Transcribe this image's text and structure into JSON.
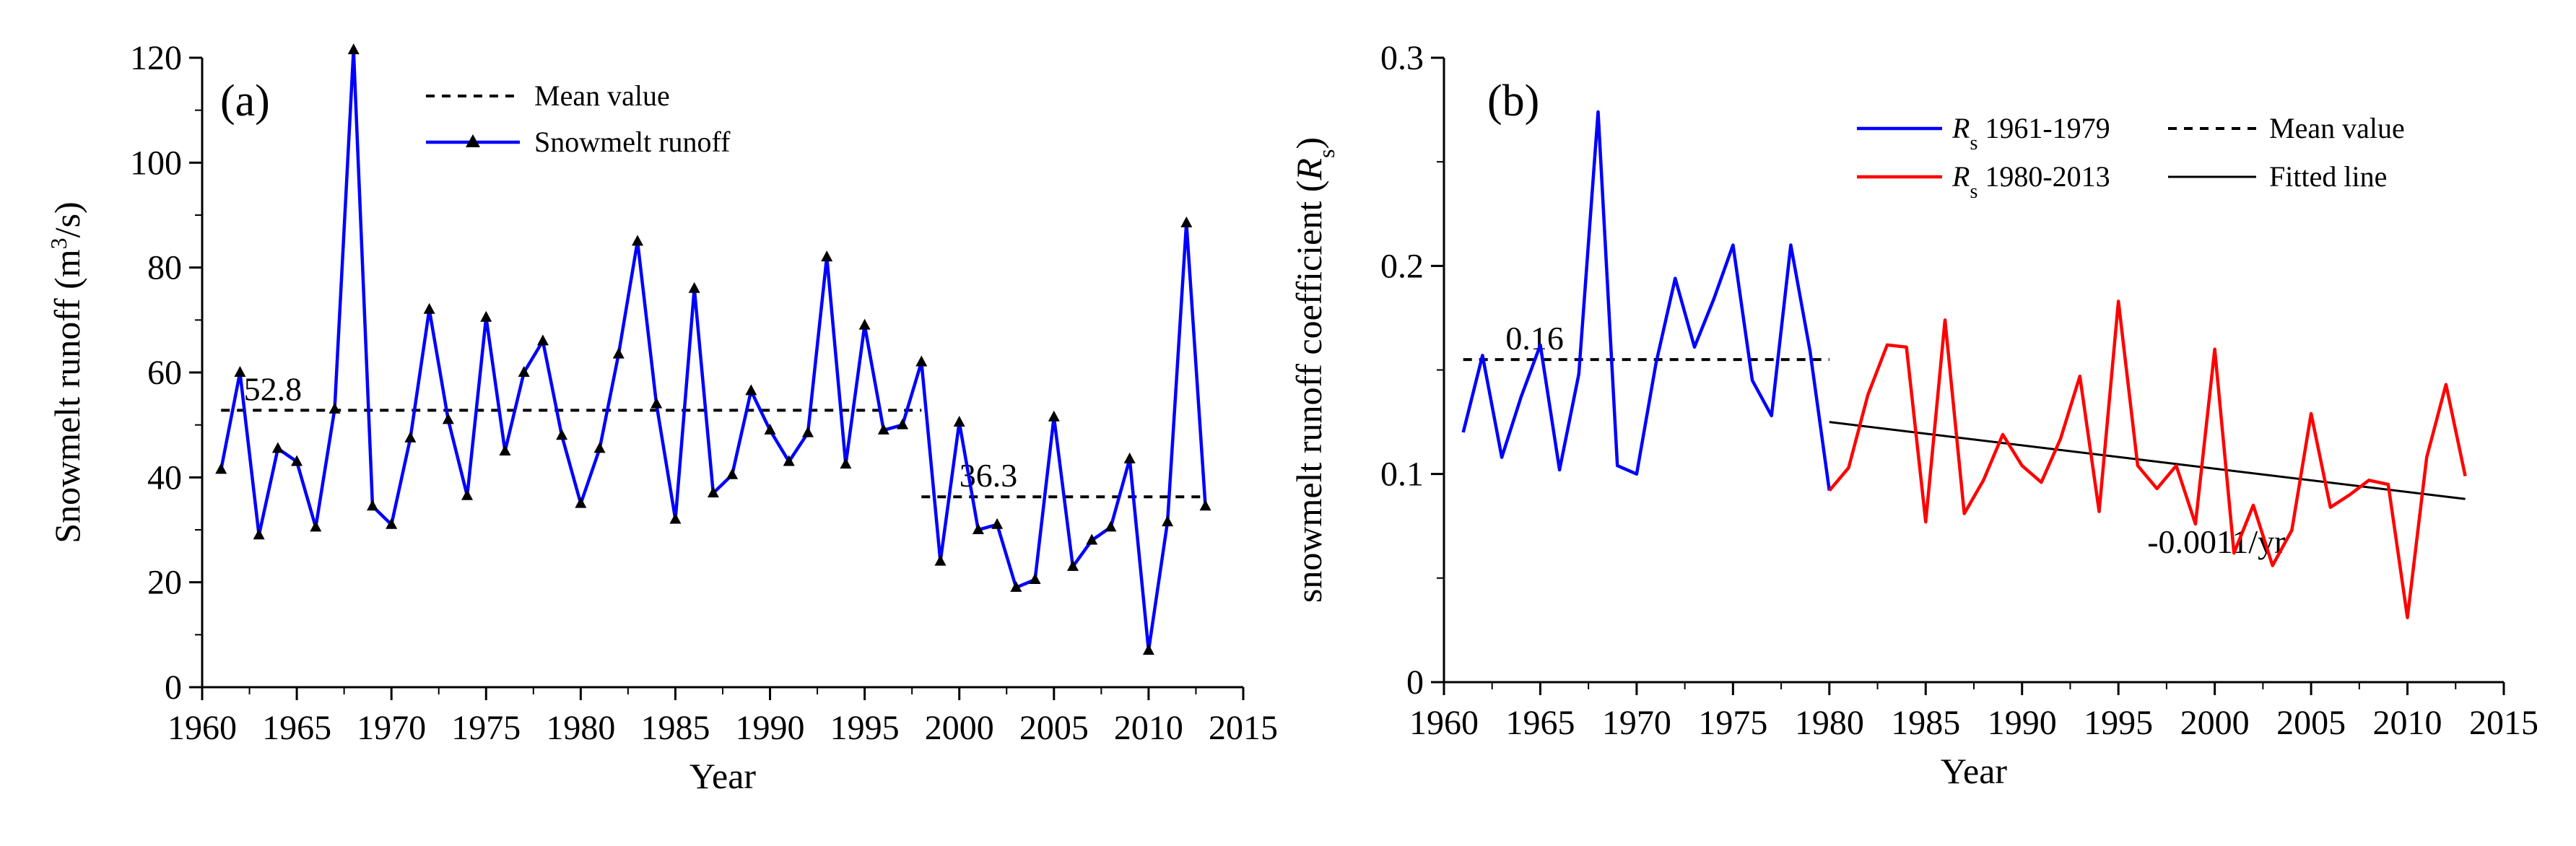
{
  "chart_data": [
    {
      "type": "line",
      "panel_label": "(a)",
      "title": "",
      "xlabel": "Year",
      "ylabel_prefix": "Snowmelt runoff (m",
      "ylabel_sup": "3",
      "ylabel_suffix": "/s)",
      "xlim": [
        1960,
        2015
      ],
      "ylim": [
        0,
        120
      ],
      "xticks": [
        1960,
        1965,
        1970,
        1975,
        1980,
        1985,
        1990,
        1995,
        2000,
        2005,
        2010,
        2015
      ],
      "xtick_labels": [
        "1960",
        "1965",
        "1970",
        "1975",
        "1980",
        "1985",
        "1990",
        "1995",
        "2000",
        "2005",
        "2010",
        "2015"
      ],
      "yticks": [
        0,
        20,
        40,
        60,
        80,
        100,
        120
      ],
      "ytick_labels": [
        "0",
        "20",
        "40",
        "60",
        "80",
        "100",
        "120"
      ],
      "legend": [
        {
          "label": "Mean value",
          "style": "dashed",
          "color": "#000000"
        },
        {
          "label": "Snowmelt runoff",
          "style": "solid-triangle",
          "color": "#0000ff"
        }
      ],
      "series": [
        {
          "name": "Snowmelt runoff",
          "color": "#0000ff",
          "marker": "triangle",
          "x": [
            1961,
            1962,
            1963,
            1964,
            1965,
            1966,
            1967,
            1968,
            1969,
            1970,
            1971,
            1972,
            1973,
            1974,
            1975,
            1976,
            1977,
            1978,
            1979,
            1980,
            1981,
            1982,
            1983,
            1984,
            1985,
            1986,
            1987,
            1988,
            1989,
            1990,
            1991,
            1992,
            1993,
            1994,
            1995,
            1996,
            1997,
            1998,
            1999,
            2000,
            2001,
            2002,
            2003,
            2004,
            2005,
            2006,
            2007,
            2008,
            2009,
            2010,
            2011,
            2012,
            2013
          ],
          "y": [
            41.5,
            60,
            29,
            45.5,
            43,
            30.5,
            53,
            121.5,
            34.5,
            31,
            47.5,
            72,
            51,
            36.5,
            70.5,
            45,
            60,
            66,
            48,
            35,
            45.5,
            63.5,
            85,
            54,
            32,
            76,
            37,
            40.5,
            56.5,
            49,
            43,
            48.5,
            82,
            42.5,
            69,
            49,
            50,
            62,
            24,
            50.5,
            30,
            31,
            19,
            20.5,
            51.5,
            23,
            28,
            30.5,
            43.5,
            7,
            31.5,
            88.5,
            34.5
          ]
        }
      ],
      "mean_lines": [
        {
          "value": 52.8,
          "label": "52.8",
          "x_start": 1961,
          "x_end": 1998
        },
        {
          "value": 36.3,
          "label": "36.3",
          "x_start": 1998,
          "x_end": 2013
        }
      ]
    },
    {
      "type": "line",
      "panel_label": "(b)",
      "title": "",
      "xlabel": "Year",
      "ylabel_prefix": "snowmelt runoff coefficient (",
      "ylabel_italic": "R",
      "ylabel_sub": "s",
      "ylabel_suffix": ")",
      "xlim": [
        1960,
        2015
      ],
      "ylim": [
        0,
        0.3
      ],
      "xticks": [
        1960,
        1965,
        1970,
        1975,
        1980,
        1985,
        1990,
        1995,
        2000,
        2005,
        2010,
        2015
      ],
      "xtick_labels": [
        "1960",
        "1965",
        "1970",
        "1975",
        "1980",
        "1985",
        "1990",
        "1995",
        "2000",
        "2005",
        "2010",
        "2015"
      ],
      "yticks": [
        0,
        0.1,
        0.2,
        0.3
      ],
      "ytick_labels": [
        "0",
        "0.1",
        "0.2",
        "0.3"
      ],
      "legend": [
        {
          "italic": "R",
          "sub": "s",
          "label": " 1961-1979",
          "style": "solid",
          "color": "#0000ff"
        },
        {
          "italic": "R",
          "sub": "s",
          "label": " 1980-2013",
          "style": "solid",
          "color": "#ff0000"
        },
        {
          "label": "Mean value",
          "style": "dashed",
          "color": "#000000"
        },
        {
          "label": "Fitted line",
          "style": "solid",
          "color": "#000000"
        }
      ],
      "series": [
        {
          "name": "Rs 1961-1979",
          "color": "#0000ff",
          "x": [
            1961,
            1962,
            1963,
            1964,
            1965,
            1966,
            1967,
            1968,
            1969,
            1970,
            1971,
            1972,
            1973,
            1974,
            1975,
            1976,
            1977,
            1978,
            1979,
            1980
          ],
          "y": [
            0.12,
            0.157,
            0.108,
            0.137,
            0.162,
            0.102,
            0.148,
            0.274,
            0.104,
            0.1,
            0.153,
            0.194,
            0.161,
            0.184,
            0.21,
            0.145,
            0.128,
            0.21,
            0.159,
            0.092
          ]
        },
        {
          "name": "Rs 1980-2013",
          "color": "#ff0000",
          "x": [
            1980,
            1981,
            1982,
            1983,
            1984,
            1985,
            1986,
            1987,
            1988,
            1989,
            1990,
            1991,
            1992,
            1993,
            1994,
            1995,
            1996,
            1997,
            1998,
            1999,
            2000,
            2001,
            2002,
            2003,
            2004,
            2005,
            2006,
            2007,
            2008,
            2009,
            2010,
            2011,
            2012,
            2013
          ],
          "y": [
            0.092,
            0.103,
            0.138,
            0.162,
            0.161,
            0.077,
            0.174,
            0.081,
            0.097,
            0.119,
            0.104,
            0.096,
            0.117,
            0.147,
            0.082,
            0.183,
            0.104,
            0.093,
            0.104,
            0.076,
            0.16,
            0.062,
            0.085,
            0.056,
            0.073,
            0.129,
            0.084,
            0.09,
            0.097,
            0.095,
            0.031,
            0.108,
            0.143,
            0.099
          ]
        }
      ],
      "mean_lines": [
        {
          "value": 0.155,
          "label": "0.16",
          "x_start": 1961,
          "x_end": 1980
        }
      ],
      "fitted_line": {
        "x": [
          1980,
          2013
        ],
        "y": [
          0.125,
          0.088
        ],
        "label": "-0.0011/yr"
      }
    }
  ]
}
